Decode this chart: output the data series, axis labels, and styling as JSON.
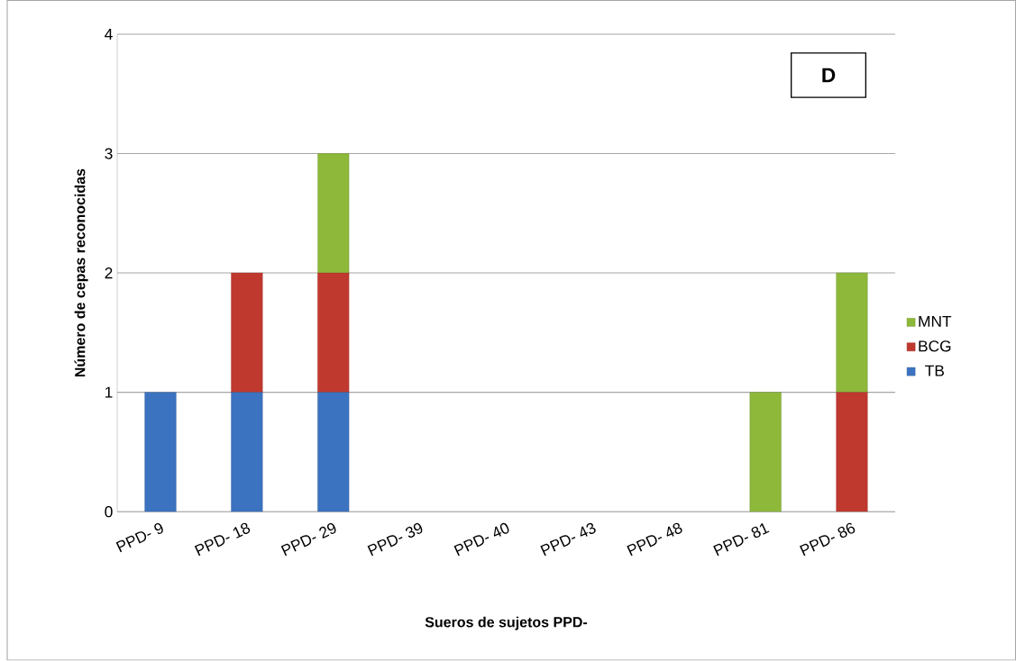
{
  "chart_data": {
    "type": "bar",
    "stacked": true,
    "xlabel": "Sueros de sujetos PPD-",
    "ylabel": "Número de cepas reconocidas",
    "categories": [
      "PPD- 9",
      "PPD- 18",
      "PPD- 29",
      "PPD- 39",
      "PPD- 40",
      "PPD- 43",
      "PPD- 48",
      "PPD- 81",
      "PPD- 86"
    ],
    "series": [
      {
        "name": "TB",
        "color": "#3b73c0",
        "values": [
          1,
          1,
          1,
          0,
          0,
          0,
          0,
          0,
          0
        ]
      },
      {
        "name": "BCG",
        "color": "#c0392f",
        "values": [
          0,
          1,
          1,
          0,
          0,
          0,
          0,
          0,
          1
        ]
      },
      {
        "name": "MNT",
        "color": "#8db83a",
        "values": [
          0,
          0,
          1,
          0,
          0,
          0,
          0,
          1,
          1
        ]
      }
    ],
    "ylim": [
      0,
      4
    ],
    "yticks": [
      0,
      1,
      2,
      3,
      4
    ],
    "grid": "y",
    "legend": "right",
    "annotations": [
      "D"
    ]
  }
}
